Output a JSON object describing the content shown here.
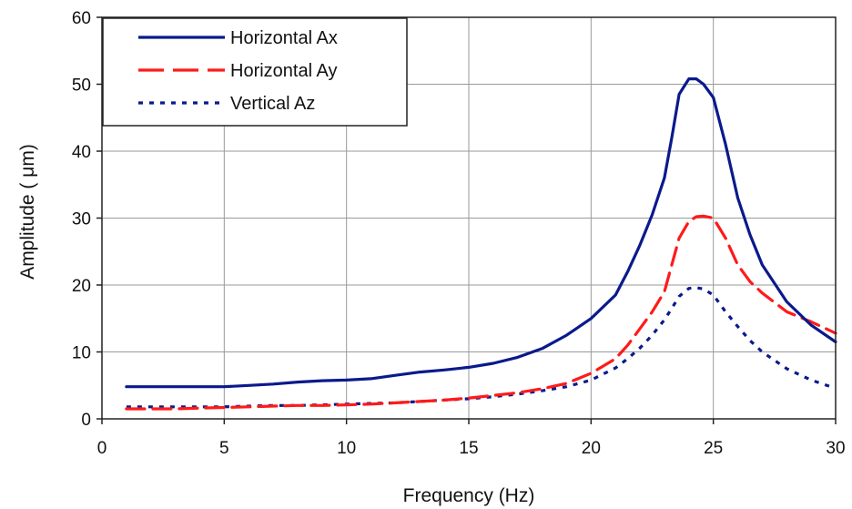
{
  "chart_data": {
    "type": "line",
    "xlabel": "Frequency (Hz)",
    "ylabel": "Amplitude ( μm)",
    "xlim": [
      0,
      30
    ],
    "ylim": [
      0,
      60
    ],
    "xticks": [
      0,
      5,
      10,
      15,
      20,
      25,
      30
    ],
    "yticks": [
      0,
      10,
      20,
      30,
      40,
      50,
      60
    ],
    "grid": true,
    "legend_position": "top-left",
    "series": [
      {
        "name": "Horizontal Ax",
        "color": "#0a1a8c",
        "style": "solid",
        "x": [
          1,
          2,
          3,
          4,
          5,
          6,
          7,
          8,
          9,
          10,
          11,
          12,
          13,
          14,
          15,
          16,
          17,
          18,
          19,
          20,
          21,
          21.5,
          22,
          22.5,
          23,
          23.3,
          23.6,
          24,
          24.3,
          24.6,
          25,
          25.5,
          26,
          26.5,
          27,
          28,
          29,
          30
        ],
        "y": [
          4.8,
          4.8,
          4.8,
          4.8,
          4.8,
          5.0,
          5.2,
          5.5,
          5.7,
          5.8,
          6.0,
          6.5,
          7.0,
          7.3,
          7.7,
          8.3,
          9.2,
          10.5,
          12.5,
          15.0,
          18.5,
          22.0,
          26.0,
          30.5,
          36.0,
          42.0,
          48.5,
          50.8,
          50.8,
          50.0,
          48.0,
          41.0,
          33.0,
          27.5,
          23.0,
          17.5,
          14.0,
          11.5
        ]
      },
      {
        "name": "Horizontal Ay",
        "color": "#ff1a1a",
        "style": "dashed",
        "x": [
          1,
          2,
          3,
          4,
          5,
          6,
          7,
          8,
          9,
          10,
          11,
          12,
          13,
          14,
          15,
          16,
          17,
          18,
          19,
          20,
          21,
          21.5,
          22,
          22.5,
          23,
          23.3,
          23.6,
          24,
          24.3,
          24.6,
          25,
          25.5,
          26,
          26.5,
          27,
          28,
          29,
          30
        ],
        "y": [
          1.5,
          1.5,
          1.5,
          1.6,
          1.7,
          1.8,
          1.9,
          2.0,
          2.0,
          2.1,
          2.2,
          2.4,
          2.6,
          2.8,
          3.1,
          3.5,
          3.9,
          4.5,
          5.3,
          6.8,
          9.0,
          11.0,
          13.5,
          16.0,
          19.0,
          23.0,
          27.0,
          29.5,
          30.2,
          30.3,
          30.0,
          27.0,
          23.0,
          20.5,
          18.8,
          16.0,
          14.5,
          12.8
        ]
      },
      {
        "name": "Vertical Az",
        "color": "#0a1a8c",
        "style": "dotted",
        "x": [
          1,
          2,
          3,
          4,
          5,
          6,
          7,
          8,
          9,
          10,
          11,
          12,
          13,
          14,
          15,
          16,
          17,
          18,
          19,
          20,
          21,
          21.5,
          22,
          22.5,
          23,
          23.3,
          23.6,
          24,
          24.3,
          24.6,
          25,
          25.5,
          26,
          26.5,
          27,
          28,
          29,
          29.8
        ],
        "y": [
          1.8,
          1.8,
          1.8,
          1.8,
          1.8,
          1.9,
          2.0,
          2.0,
          2.1,
          2.2,
          2.3,
          2.4,
          2.6,
          2.8,
          3.0,
          3.3,
          3.7,
          4.2,
          4.8,
          5.8,
          7.6,
          9.0,
          10.6,
          12.5,
          14.8,
          16.5,
          18.3,
          19.5,
          19.6,
          19.4,
          18.5,
          16.0,
          13.8,
          11.7,
          10.0,
          7.5,
          5.8,
          4.8
        ]
      }
    ]
  }
}
